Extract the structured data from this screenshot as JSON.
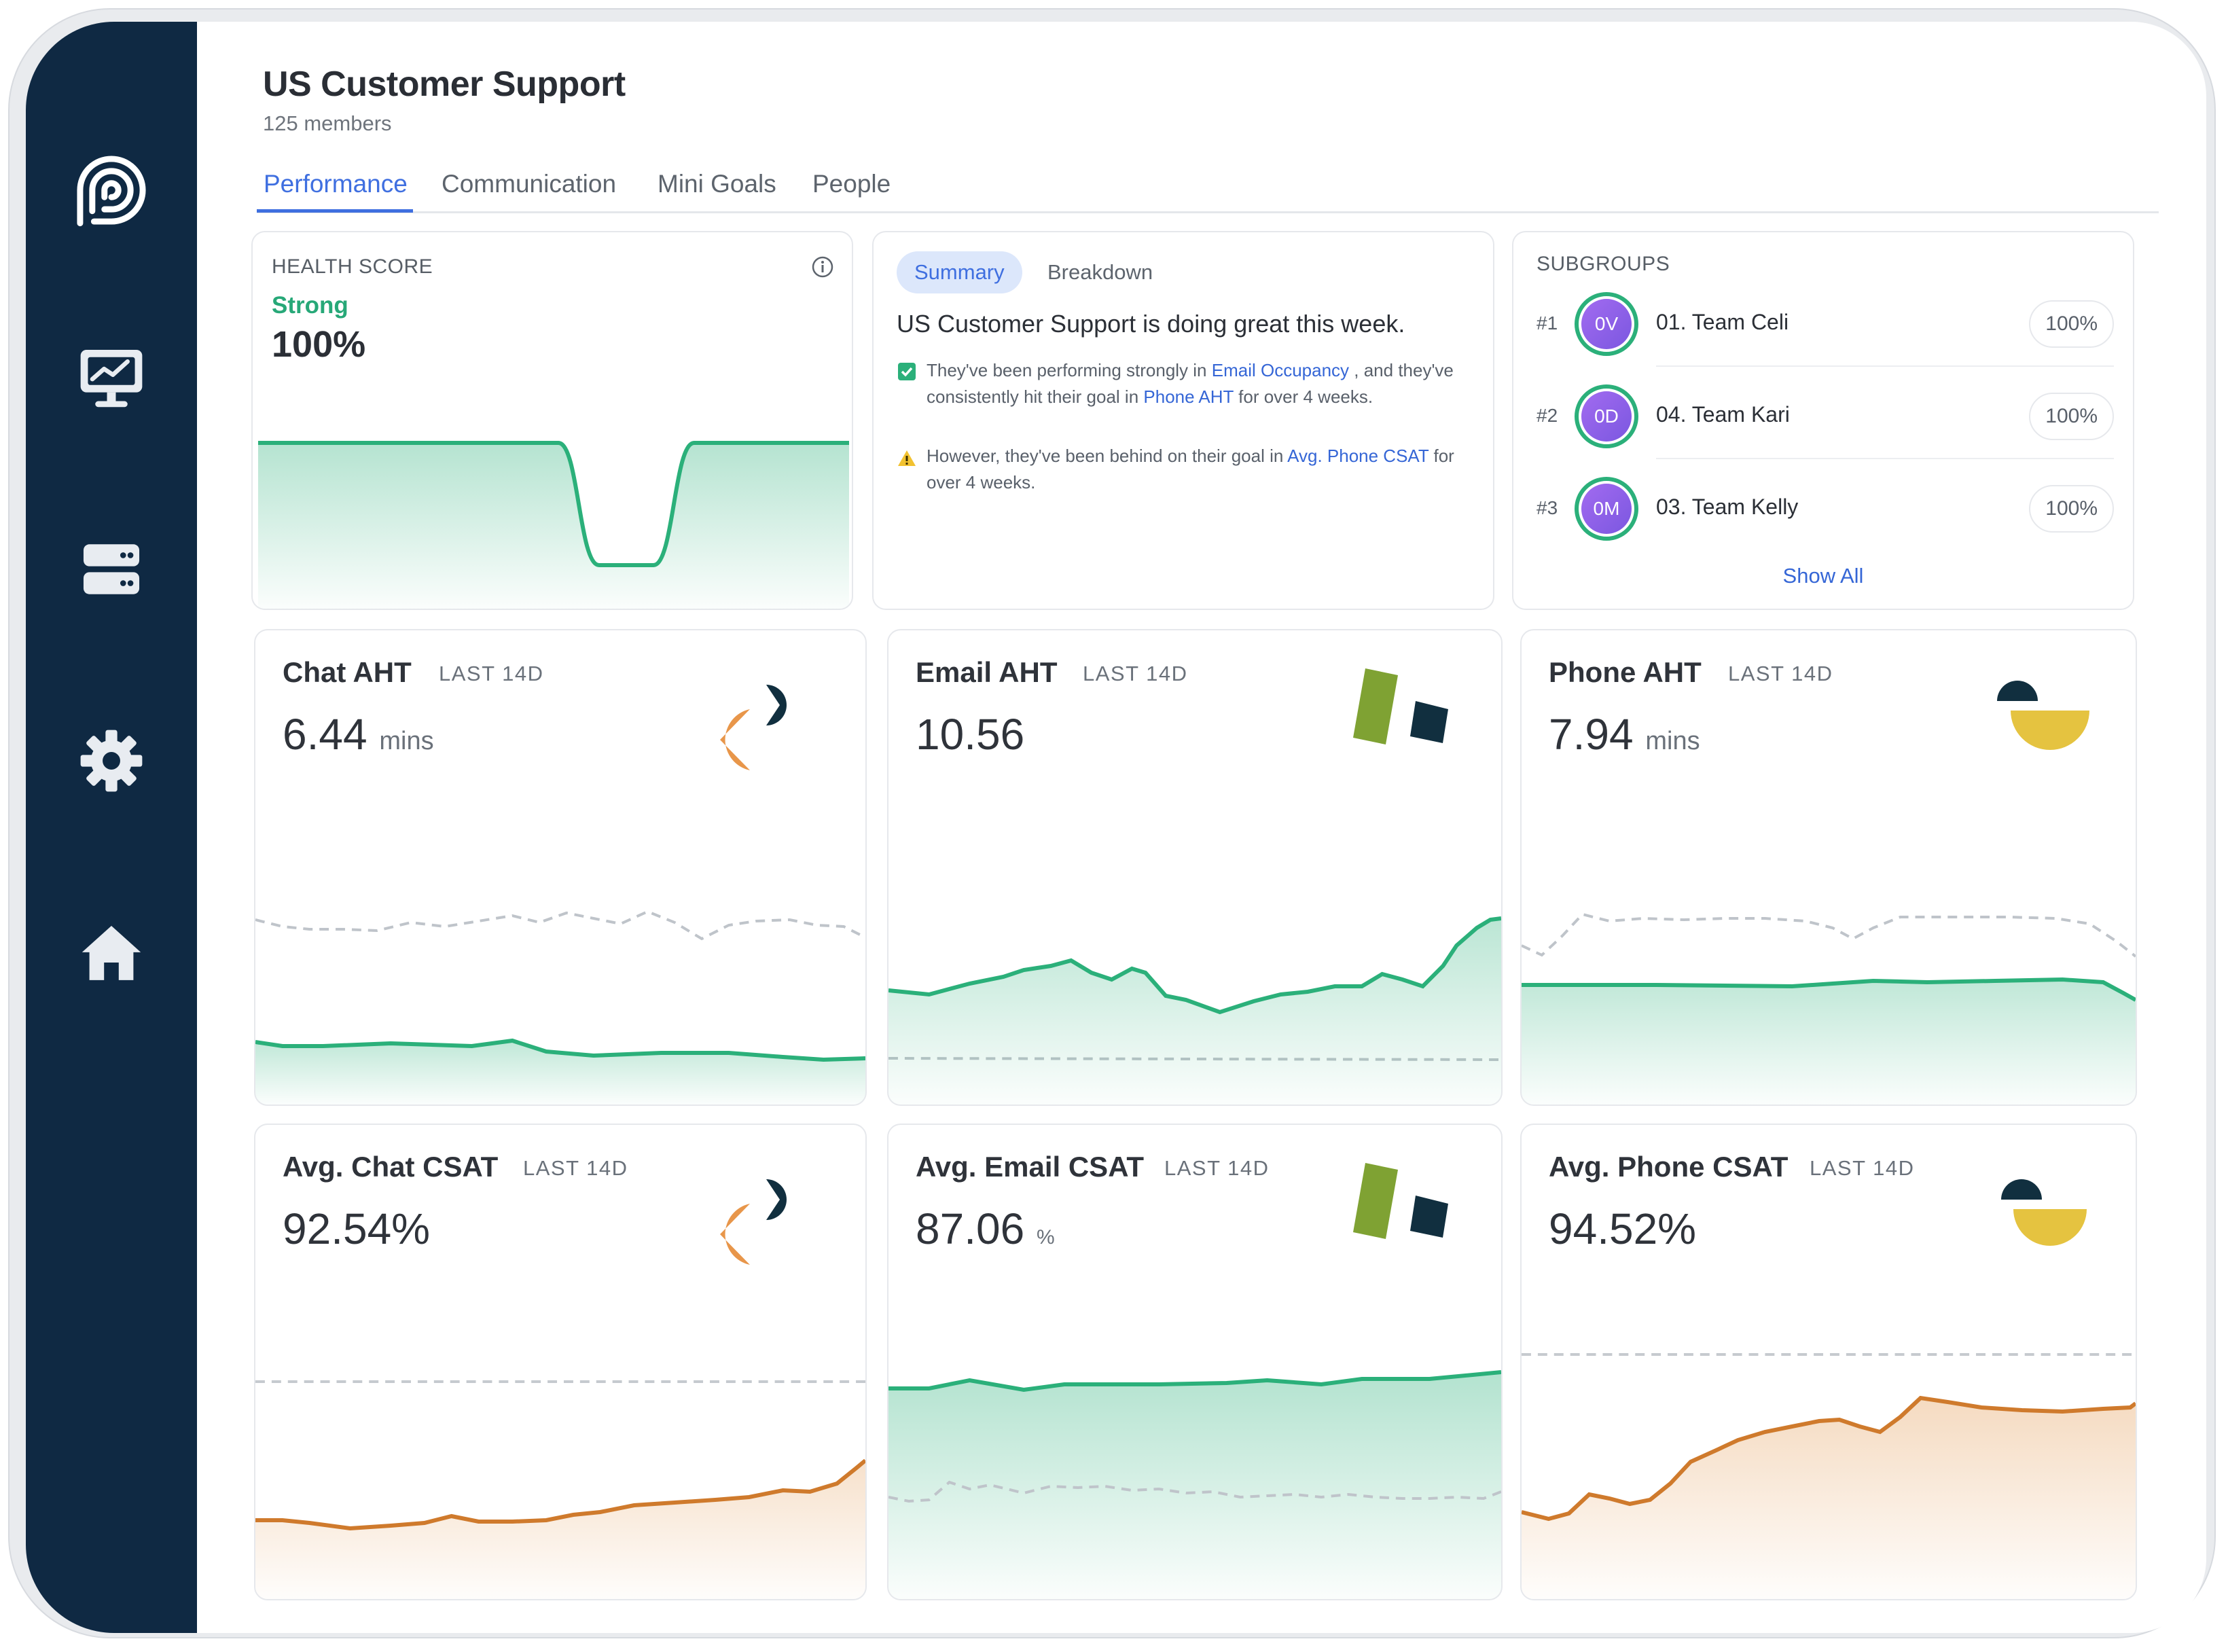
{
  "header": {
    "title": "US Customer Support",
    "subtitle": "125 members"
  },
  "tabs": [
    {
      "label": "Performance",
      "active": true
    },
    {
      "label": "Communication",
      "active": false
    },
    {
      "label": "Mini Goals",
      "active": false
    },
    {
      "label": "People",
      "active": false
    }
  ],
  "sidebar": {
    "icons": [
      "logo-icon",
      "monitor-chart-icon",
      "server-icon",
      "gear-icon",
      "home-icon"
    ]
  },
  "health": {
    "label": "HEALTH SCORE",
    "status": "Strong",
    "value": "100%"
  },
  "summary": {
    "tabs": [
      "Summary",
      "Breakdown"
    ],
    "headline": "US Customer Support is doing great this week.",
    "positive": {
      "t1": "They've been performing strongly in ",
      "link1": "Email Occupancy",
      "t2": " , and they've consistently hit their goal in ",
      "link2": "Phone AHT",
      "t3": " for over 4 weeks."
    },
    "warning": {
      "t1": "However, they've been behind on their goal in ",
      "link1": "Avg. Phone CSAT",
      "t2": " for over 4 weeks."
    }
  },
  "subgroups": {
    "label": "SUBGROUPS",
    "items": [
      {
        "rank": "#1",
        "initials": "0V",
        "name": "01. Team Celi",
        "pct": "100%"
      },
      {
        "rank": "#2",
        "initials": "0D",
        "name": "04. Team Kari",
        "pct": "100%"
      },
      {
        "rank": "#3",
        "initials": "0M",
        "name": "03. Team Kelly",
        "pct": "100%"
      }
    ],
    "show_all": "Show All"
  },
  "metrics": [
    {
      "title": "Chat AHT",
      "period": "LAST 14D",
      "value": "6.44",
      "unit": "mins"
    },
    {
      "title": "Email AHT",
      "period": "LAST 14D",
      "value": "10.56",
      "unit": ""
    },
    {
      "title": "Phone AHT",
      "period": "LAST 14D",
      "value": "7.94",
      "unit": "mins"
    },
    {
      "title": "Avg. Chat CSAT",
      "period": "LAST 14D",
      "value": "92.54%",
      "unit": ""
    },
    {
      "title": "Avg. Email CSAT",
      "period": "LAST 14D",
      "value": "87.06",
      "unit": "%"
    },
    {
      "title": "Avg. Phone CSAT",
      "period": "LAST 14D",
      "value": "94.52%",
      "unit": ""
    }
  ],
  "colors": {
    "accent": "#3f6fe0",
    "good": "#27a878",
    "orange": "#cf7a2c",
    "sidebar": "#0f2943"
  }
}
